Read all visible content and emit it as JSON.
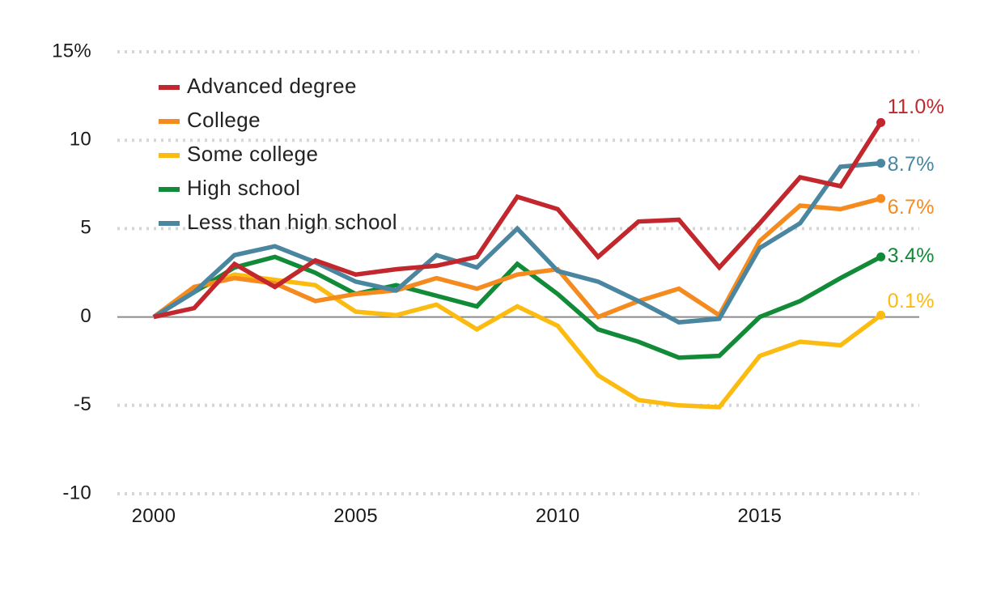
{
  "chart_data": {
    "type": "line",
    "title": "",
    "xlabel": "",
    "ylabel": "",
    "x": [
      2000,
      2001,
      2002,
      2003,
      2004,
      2005,
      2006,
      2007,
      2008,
      2009,
      2010,
      2011,
      2012,
      2013,
      2014,
      2015,
      2016,
      2017,
      2018
    ],
    "xlim": [
      1999.1,
      2018.95
    ],
    "ylim": [
      -10,
      15
    ],
    "x_ticks": [
      2000,
      2005,
      2010,
      2015
    ],
    "x_tick_labels": [
      "2000",
      "2005",
      "2010",
      "2015"
    ],
    "y_ticks": [
      15,
      10,
      5,
      0,
      -5,
      -10
    ],
    "y_tick_labels": [
      "15%",
      "10",
      "5",
      "0",
      "-5",
      "-10"
    ],
    "grid": true,
    "legend_position": "top-left",
    "series": [
      {
        "name": "Advanced degree",
        "color": "#c1272d",
        "values": [
          0,
          0.5,
          3.0,
          1.7,
          3.2,
          2.4,
          2.7,
          2.9,
          3.4,
          6.8,
          6.1,
          3.4,
          5.4,
          5.5,
          2.8,
          5.3,
          7.9,
          7.4,
          11.0
        ],
        "end_label": "11.0%"
      },
      {
        "name": "College",
        "color": "#f58a1f",
        "values": [
          0,
          1.7,
          2.2,
          1.9,
          0.9,
          1.3,
          1.5,
          2.2,
          1.6,
          2.4,
          2.7,
          0.0,
          0.9,
          1.6,
          0.1,
          4.3,
          6.3,
          6.1,
          6.7
        ],
        "end_label": "6.7%"
      },
      {
        "name": "Some college",
        "color": "#fcbb10",
        "values": [
          0,
          1.5,
          2.4,
          2.1,
          1.8,
          0.3,
          0.1,
          0.7,
          -0.7,
          0.6,
          -0.5,
          -3.3,
          -4.7,
          -5.0,
          -5.1,
          -2.2,
          -1.4,
          -1.6,
          0.1
        ],
        "end_label": "0.1%"
      },
      {
        "name": "High school",
        "color": "#118b37",
        "values": [
          0,
          1.4,
          2.8,
          3.4,
          2.5,
          1.3,
          1.8,
          1.2,
          0.6,
          3.0,
          1.3,
          -0.7,
          -1.4,
          -2.3,
          -2.2,
          0.0,
          0.9,
          2.2,
          3.4
        ],
        "end_label": "3.4%"
      },
      {
        "name": "Less than high school",
        "color": "#4a86a0",
        "values": [
          0,
          1.4,
          3.5,
          4.0,
          3.1,
          2.0,
          1.5,
          3.5,
          2.8,
          5.0,
          2.6,
          2.0,
          0.9,
          -0.3,
          -0.1,
          3.9,
          5.3,
          8.5,
          8.7
        ],
        "end_label": "8.7%"
      }
    ]
  }
}
